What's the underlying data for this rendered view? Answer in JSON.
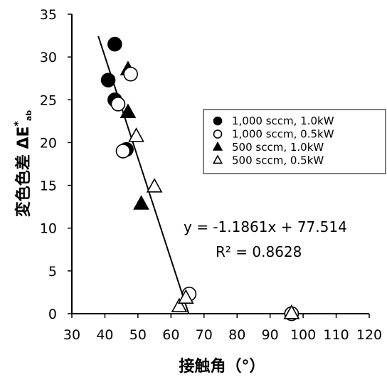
{
  "chart_data": {
    "type": "scatter",
    "xlabel": "接触角（°）",
    "ylabel_main": "変色色差 ΔE",
    "ylabel_sup": "*",
    "ylabel_sub": "ab",
    "xlim": [
      30,
      120
    ],
    "ylim": [
      0,
      35
    ],
    "x_ticks": [
      30,
      40,
      50,
      60,
      70,
      80,
      90,
      100,
      110,
      120
    ],
    "y_ticks": [
      0,
      5,
      10,
      15,
      20,
      25,
      30,
      35
    ],
    "grid": false,
    "legend_position": "right",
    "series": [
      {
        "name": "1,000 sccm,  1.0kW",
        "marker": "filled-circle",
        "points": [
          [
            43,
            31.5
          ],
          [
            41,
            27.3
          ],
          [
            43,
            25
          ],
          [
            46.5,
            19.2
          ],
          [
            96.5,
            0
          ]
        ]
      },
      {
        "name": "1,000 sccm,  0.5kW",
        "marker": "open-circle",
        "points": [
          [
            47.8,
            28
          ],
          [
            44,
            24.5
          ],
          [
            45.5,
            19
          ],
          [
            65.5,
            2.3
          ],
          [
            96.5,
            0
          ]
        ]
      },
      {
        "name": "500 sccm,  1.0kW",
        "marker": "filled-triangle",
        "points": [
          [
            47,
            28.5
          ],
          [
            47,
            23.5
          ],
          [
            51,
            12.8
          ],
          [
            96.5,
            0
          ]
        ]
      },
      {
        "name": "500 sccm,  0.5kW",
        "marker": "open-triangle",
        "points": [
          [
            49.5,
            20.7
          ],
          [
            55,
            14.8
          ],
          [
            62.5,
            0.8
          ],
          [
            64.5,
            1.8
          ],
          [
            96.5,
            0
          ]
        ]
      }
    ],
    "trendline": {
      "slope": -1.1861,
      "intercept": 77.514,
      "x_range": [
        38,
        65.4
      ]
    },
    "annotation": {
      "equation": "y = -1.1861x + 77.514",
      "r2_label": "R² = 0.8628"
    }
  }
}
